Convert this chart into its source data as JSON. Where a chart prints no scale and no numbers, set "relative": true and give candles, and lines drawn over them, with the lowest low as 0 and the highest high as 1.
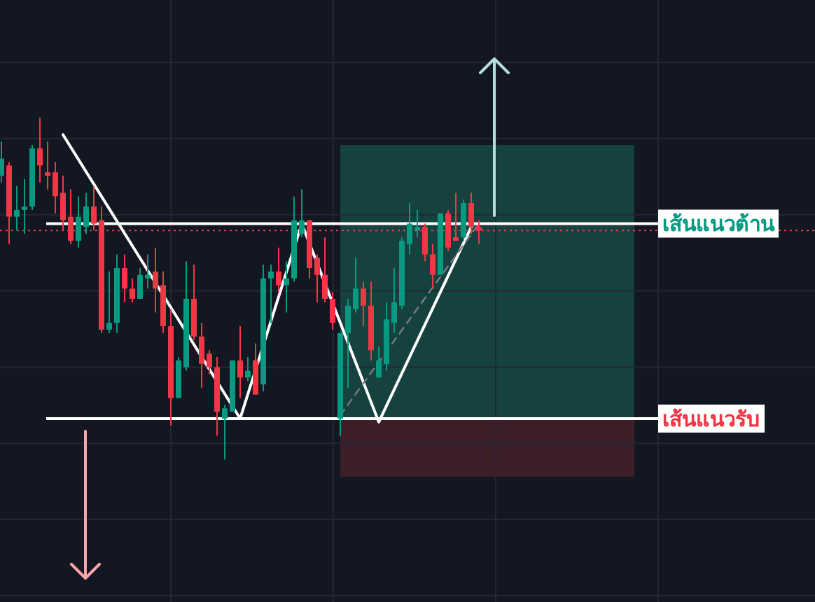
{
  "chart_data": {
    "type": "candlestick",
    "relative": true,
    "categories": [
      null,
      null,
      null,
      null,
      null,
      null,
      null,
      null,
      null,
      null,
      null,
      null,
      null,
      null,
      null,
      null,
      null,
      null,
      null,
      null,
      null,
      null,
      null,
      null,
      null,
      null,
      null,
      null,
      null,
      null,
      null,
      null,
      null,
      null,
      null,
      null,
      null,
      null,
      null,
      null,
      null,
      null,
      null,
      null,
      null,
      null,
      null,
      null,
      null,
      null,
      null,
      null,
      null,
      null,
      null,
      null,
      null,
      null,
      null,
      null,
      null,
      null,
      null
    ],
    "ohlc": [
      [
        0.83,
        0.93,
        0.81,
        0.88
      ],
      [
        0.86,
        0.87,
        0.63,
        0.71
      ],
      [
        0.71,
        0.8,
        0.67,
        0.73
      ],
      [
        0.73,
        0.82,
        0.66,
        0.74
      ],
      [
        0.74,
        0.92,
        0.73,
        0.91
      ],
      [
        0.91,
        1,
        0.81,
        0.86
      ],
      [
        0.84,
        0.93,
        0.79,
        0.83
      ],
      [
        0.84,
        0.87,
        0.72,
        0.77
      ],
      [
        0.78,
        0.83,
        0.67,
        0.7
      ],
      [
        0.71,
        0.79,
        0.63,
        0.64
      ],
      [
        0.64,
        0.77,
        0.62,
        0.71
      ],
      [
        0.68,
        0.78,
        0.66,
        0.74
      ],
      [
        0.74,
        0.8,
        0.67,
        0.69
      ],
      [
        0.7,
        0.74,
        0.37,
        0.38
      ],
      [
        0.38,
        0.55,
        0.37,
        0.4
      ],
      [
        0.4,
        0.6,
        0.37,
        0.56
      ],
      [
        0.56,
        0.6,
        0.46,
        0.5
      ],
      [
        0.5,
        0.53,
        0.46,
        0.47
      ],
      [
        0.47,
        0.56,
        0.47,
        0.54
      ],
      [
        0.53,
        0.6,
        0.5,
        0.54
      ],
      [
        0.55,
        0.62,
        0.43,
        0.5
      ],
      [
        0.51,
        0.55,
        0.37,
        0.39
      ],
      [
        0.39,
        0.44,
        0.1,
        0.18
      ],
      [
        0.18,
        0.3,
        0.18,
        0.29
      ],
      [
        0.27,
        0.58,
        0.26,
        0.47
      ],
      [
        0.47,
        0.57,
        0.35,
        0.36
      ],
      [
        0.36,
        0.4,
        0.21,
        0.28
      ],
      [
        0.31,
        0.32,
        0.25,
        0.27
      ],
      [
        0.27,
        0.3,
        0.07,
        0.14
      ],
      [
        0.12,
        0.16,
        0,
        0.15
      ],
      [
        0.14,
        0.29,
        0.14,
        0.29
      ],
      [
        0.29,
        0.39,
        0.18,
        0.24
      ],
      [
        0.24,
        0.3,
        0.23,
        0.26
      ],
      [
        0.29,
        0.34,
        0.19,
        0.19
      ],
      [
        0.22,
        0.57,
        0.2,
        0.53
      ],
      [
        0.53,
        0.57,
        0.4,
        0.55
      ],
      [
        0.55,
        0.62,
        0.49,
        0.51
      ],
      [
        0.51,
        0.58,
        0.43,
        0.53
      ],
      [
        0.53,
        0.77,
        0.52,
        0.7
      ],
      [
        0.66,
        0.79,
        0.65,
        0.7
      ],
      [
        0.7,
        0.7,
        0.53,
        0.56
      ],
      [
        0.59,
        0.6,
        0.46,
        0.54
      ],
      [
        0.54,
        0.65,
        0.46,
        0.47
      ],
      [
        0.47,
        0.49,
        0.38,
        0.4
      ],
      [
        0.12,
        0.37,
        0.07,
        0.37
      ],
      [
        0.37,
        0.47,
        0.21,
        0.45
      ],
      [
        0.44,
        0.59,
        0.43,
        0.5
      ],
      [
        0.5,
        0.52,
        0.39,
        0.45
      ],
      [
        0.45,
        0.52,
        0.29,
        0.32
      ],
      [
        0.24,
        0.33,
        0.24,
        0.29
      ],
      [
        0.28,
        0.46,
        0.26,
        0.41
      ],
      [
        0.4,
        0.56,
        0.37,
        0.46
      ],
      [
        0.45,
        0.65,
        0.44,
        0.64
      ],
      [
        0.63,
        0.75,
        0.6,
        0.69
      ],
      [
        0.67,
        0.73,
        0.65,
        0.68
      ],
      [
        0.68,
        0.69,
        0.58,
        0.6
      ],
      [
        0.6,
        0.63,
        0.5,
        0.54
      ],
      [
        0.54,
        0.72,
        0.54,
        0.72
      ],
      [
        0.72,
        0.73,
        0.61,
        0.62
      ],
      [
        0.65,
        0.78,
        0.64,
        0.64
      ],
      [
        0.65,
        0.76,
        0.64,
        0.75
      ],
      [
        0.75,
        0.78,
        0.66,
        0.68
      ],
      [
        0.68,
        0.7,
        0.63,
        0.67
      ]
    ],
    "colors": [
      "#089981",
      "#f23645",
      "#089981",
      "#089981",
      "#089981",
      "#f23645",
      "#f23645",
      "#f23645",
      "#f23645",
      "#f23645",
      "#089981",
      "#089981",
      "#f23645",
      "#f23645",
      "#089981",
      "#089981",
      "#f23645",
      "#f23645",
      "#089981",
      "#089981",
      "#f23645",
      "#f23645",
      "#f23645",
      "#089981",
      "#089981",
      "#f23645",
      "#f23645",
      "#f23645",
      "#f23645",
      "#089981",
      "#089981",
      "#f23645",
      "#089981",
      "#f23645",
      "#089981",
      "#089981",
      "#f23645",
      "#089981",
      "#089981",
      "#089981",
      "#f23645",
      "#f23645",
      "#f23645",
      "#f23645",
      "#089981",
      "#089981",
      "#089981",
      "#f23645",
      "#f23645",
      "#089981",
      "#089981",
      "#089981",
      "#089981",
      "#089981",
      "#089981",
      "#f23645",
      "#f23645",
      "#089981",
      "#f23645",
      "#f23645",
      "#089981",
      "#f23645",
      "#f23645"
    ],
    "series": [
      {
        "type": "line",
        "color": "#ffffff",
        "line_style": "solid",
        "values": [
          null,
          null,
          null,
          null,
          null,
          null,
          null,
          null,
          0.95,
          null,
          null,
          null,
          null,
          null,
          null,
          null,
          null,
          null,
          null,
          null,
          null,
          null,
          null,
          null,
          null,
          null,
          null,
          null,
          null,
          null,
          null,
          0.12,
          null,
          null,
          null,
          null,
          null,
          null,
          null,
          0.69,
          null,
          null,
          null,
          null,
          null,
          null,
          null,
          null,
          null,
          0.11,
          null,
          null,
          null,
          null,
          null,
          null,
          null,
          null,
          null,
          null,
          null,
          0.68,
          null
        ]
      },
      {
        "type": "line",
        "color": "#787b86",
        "line_style": "dashed",
        "values": [
          null,
          null,
          null,
          null,
          null,
          null,
          null,
          null,
          null,
          null,
          null,
          null,
          null,
          null,
          null,
          null,
          null,
          null,
          null,
          null,
          null,
          null,
          null,
          null,
          null,
          null,
          null,
          null,
          null,
          null,
          null,
          null,
          null,
          null,
          null,
          null,
          null,
          null,
          null,
          null,
          null,
          null,
          null,
          null,
          0.13,
          null,
          null,
          null,
          null,
          null,
          null,
          null,
          null,
          null,
          null,
          null,
          null,
          null,
          null,
          null,
          null,
          null,
          0.69
        ]
      }
    ],
    "ref_lines": [
      {
        "axis": "y",
        "value": 0.69,
        "label": "เส้นแนวต้าน",
        "color": "#ffffff"
      },
      {
        "axis": "y",
        "value": 0.12,
        "label": "เส้นแนวรับ",
        "color": "#ffffff"
      },
      {
        "axis": "y",
        "value": 0.67,
        "color": "#f23645",
        "line_style": "dotted"
      }
    ],
    "bands": [
      {
        "axis": "y",
        "from": 0.12,
        "to": 0.92,
        "color": "#15423e"
      },
      {
        "axis": "y",
        "from": -0.05,
        "to": 0.12,
        "color": "#3d1f29"
      }
    ],
    "grid": true
  }
}
